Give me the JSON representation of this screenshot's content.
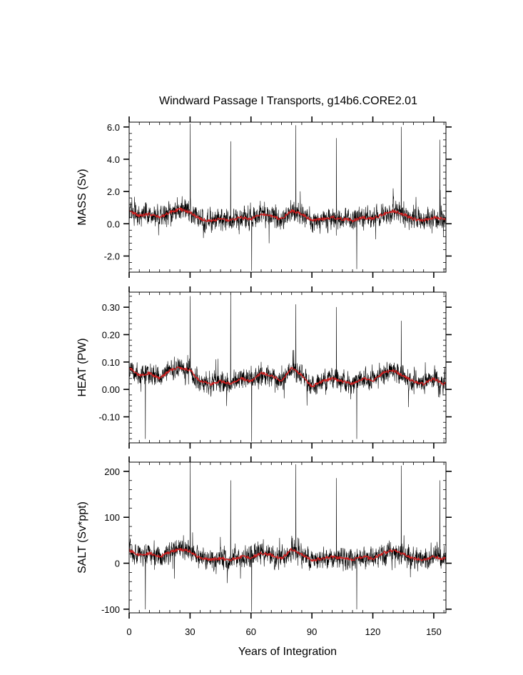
{
  "figure": {
    "title": "Windward Passage I Transports, g14b6.CORE2.01",
    "xlabel": "Years of Integration"
  },
  "colors": {
    "monthly_line": "#000000",
    "smoothed_line": "#cc1f1f",
    "frame": "#000000",
    "background": "#ffffff"
  },
  "chart_data": [
    {
      "type": "line",
      "ylabel": "MASS (Sv)",
      "xlim": [
        0,
        156
      ],
      "ylim": [
        -3.0,
        6.3
      ],
      "xticks": [
        0,
        30,
        60,
        90,
        120,
        150
      ],
      "yticks": [
        -2.0,
        0.0,
        2.0,
        4.0,
        6.0
      ],
      "ytick_labels": [
        "-2.0",
        "0.0",
        "2.0",
        "4.0",
        "6.0"
      ],
      "series": [
        {
          "style": "monthly, thin black",
          "mean": 0.45,
          "spread": 0.8,
          "spikes_approx": [
            [
              30.1,
              6.2
            ],
            [
              50.0,
              5.1
            ],
            [
              82.1,
              6.1
            ],
            [
              102.1,
              5.3
            ],
            [
              134.0,
              6.0
            ],
            [
              153.0,
              5.2
            ],
            [
              60.3,
              -2.9
            ],
            [
              112.1,
              -2.8
            ]
          ]
        },
        {
          "style": "smoothed, red",
          "x": [
            0,
            5,
            10,
            15,
            20,
            25,
            30,
            35,
            40,
            45,
            50,
            55,
            60,
            65,
            70,
            75,
            80,
            85,
            90,
            95,
            100,
            105,
            110,
            115,
            120,
            125,
            130,
            135,
            140,
            145,
            150,
            155
          ],
          "values": [
            0.8,
            0.5,
            0.6,
            0.4,
            0.7,
            0.9,
            0.7,
            0.3,
            0.2,
            0.3,
            0.2,
            0.4,
            0.3,
            0.6,
            0.5,
            0.3,
            0.8,
            0.6,
            0.2,
            0.3,
            0.4,
            0.3,
            0.2,
            0.4,
            0.3,
            0.6,
            0.8,
            0.6,
            0.3,
            0.2,
            0.4,
            0.3
          ]
        }
      ]
    },
    {
      "type": "line",
      "ylabel": "HEAT (PW)",
      "xlim": [
        0,
        156
      ],
      "ylim": [
        -0.195,
        0.355
      ],
      "xticks": [
        0,
        30,
        60,
        90,
        120,
        150
      ],
      "yticks": [
        -0.1,
        0.0,
        0.1,
        0.2,
        0.3
      ],
      "ytick_labels": [
        "-0.10",
        "0.00",
        "0.10",
        "0.20",
        "0.30"
      ],
      "series": [
        {
          "style": "monthly, thin black",
          "mean": 0.04,
          "spread": 0.045,
          "spikes_approx": [
            [
              30.1,
              0.34
            ],
            [
              50.0,
              0.35
            ],
            [
              82.1,
              0.31
            ],
            [
              102.1,
              0.3
            ],
            [
              134.0,
              0.25
            ],
            [
              8.0,
              -0.18
            ],
            [
              60.3,
              -0.19
            ],
            [
              112.1,
              -0.18
            ]
          ]
        },
        {
          "style": "smoothed, red",
          "x": [
            0,
            5,
            10,
            15,
            20,
            25,
            30,
            35,
            40,
            45,
            50,
            55,
            60,
            65,
            70,
            75,
            80,
            85,
            90,
            95,
            100,
            105,
            110,
            115,
            120,
            125,
            130,
            135,
            140,
            145,
            150,
            155
          ],
          "values": [
            0.08,
            0.05,
            0.06,
            0.04,
            0.07,
            0.08,
            0.07,
            0.03,
            0.02,
            0.03,
            0.02,
            0.04,
            0.03,
            0.06,
            0.05,
            0.03,
            0.08,
            0.05,
            0.01,
            0.03,
            0.04,
            0.03,
            0.02,
            0.04,
            0.03,
            0.06,
            0.07,
            0.05,
            0.03,
            0.02,
            0.04,
            0.02
          ]
        }
      ]
    },
    {
      "type": "line",
      "ylabel": "SALT (Sv*ppt)",
      "xlim": [
        0,
        156
      ],
      "ylim": [
        -108,
        220
      ],
      "xticks": [
        0,
        30,
        60,
        90,
        120,
        150
      ],
      "yticks": [
        -100,
        0,
        100,
        200
      ],
      "ytick_labels": [
        "-100",
        "0",
        "100",
        "200"
      ],
      "series": [
        {
          "style": "monthly, thin black",
          "mean": 15,
          "spread": 28,
          "spikes_approx": [
            [
              30.1,
              220
            ],
            [
              50.0,
              180
            ],
            [
              82.1,
              215
            ],
            [
              102.1,
              185
            ],
            [
              134.0,
              212
            ],
            [
              153.0,
              180
            ],
            [
              8.0,
              -100
            ],
            [
              60.3,
              -105
            ],
            [
              112.1,
              -100
            ]
          ]
        },
        {
          "style": "smoothed, red",
          "x": [
            0,
            5,
            10,
            15,
            20,
            25,
            30,
            35,
            40,
            45,
            50,
            55,
            60,
            65,
            70,
            75,
            80,
            85,
            90,
            95,
            100,
            105,
            110,
            115,
            120,
            125,
            130,
            135,
            140,
            145,
            150,
            155
          ],
          "values": [
            28,
            18,
            22,
            14,
            25,
            30,
            26,
            10,
            8,
            10,
            8,
            14,
            12,
            22,
            18,
            10,
            30,
            20,
            6,
            10,
            14,
            10,
            8,
            14,
            10,
            22,
            28,
            20,
            10,
            8,
            14,
            10
          ]
        }
      ]
    }
  ]
}
